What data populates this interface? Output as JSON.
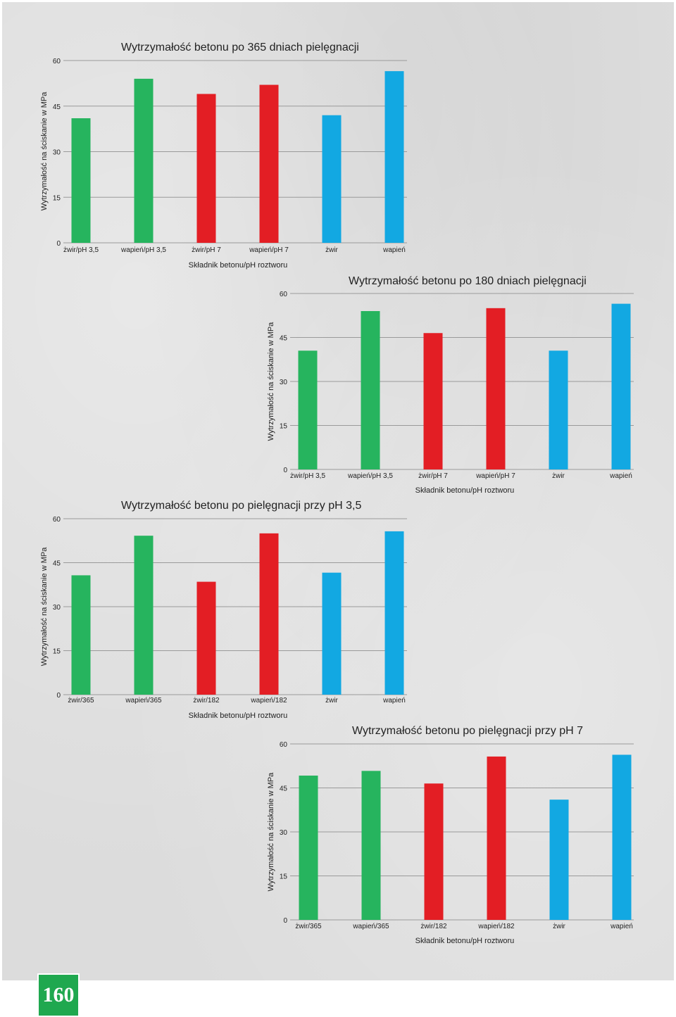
{
  "page_number": "160",
  "colors": {
    "green": "#26b45e",
    "red": "#e31e24",
    "blue": "#12a8e2",
    "gridline": "#9a9a9a"
  },
  "chart_data": [
    {
      "type": "bar",
      "title": "Wytrzymałość betonu po 365 dniach pielęgnacji",
      "xlabel": "Składnik betonu/pH roztworu",
      "ylabel": "Wytrzymałość na ściskanie w MPa",
      "ylim": [
        0,
        60
      ],
      "yticks": [
        "0",
        "15",
        "30",
        "45",
        "60"
      ],
      "categories": [
        "żwir/pH 3,5",
        "wapień/pH 3,5",
        "żwir/pH 7",
        "wapień/pH 7",
        "żwir",
        "wapień"
      ],
      "values": [
        41,
        54,
        49,
        52,
        42,
        56.5
      ],
      "bar_colors": [
        "green",
        "green",
        "red",
        "red",
        "blue",
        "blue"
      ]
    },
    {
      "type": "bar",
      "title": "Wytrzymałość betonu po 180 dniach pielęgnacji",
      "xlabel": "Składnik betonu/pH roztworu",
      "ylabel": "Wytrzymałość na ściskanie w MPa",
      "ylim": [
        0,
        60
      ],
      "yticks": [
        "0",
        "15",
        "30",
        "45",
        "60"
      ],
      "categories": [
        "żwir/pH 3,5",
        "wapień/pH 3,5",
        "żwir/pH 7",
        "wapień/pH 7",
        "żwir",
        "wapień"
      ],
      "values": [
        40.5,
        54,
        46.5,
        55,
        40.5,
        56.5
      ],
      "bar_colors": [
        "green",
        "green",
        "red",
        "red",
        "blue",
        "blue"
      ]
    },
    {
      "type": "bar",
      "title": "Wytrzymałość betonu po pielęgnacji przy pH 3,5",
      "xlabel": "Składnik betonu/pH roztworu",
      "ylabel": "Wytrzymałość na ściskanie w MPa",
      "ylim": [
        0,
        60
      ],
      "yticks": [
        "0",
        "15",
        "30",
        "45",
        "60"
      ],
      "categories": [
        "żwir/365",
        "wapień/365",
        "żwir/182",
        "wapień/182",
        "żwir",
        "wapień"
      ],
      "values": [
        40.7,
        54.2,
        38.5,
        55,
        41.6,
        55.7
      ],
      "bar_colors": [
        "green",
        "green",
        "red",
        "red",
        "blue",
        "blue"
      ]
    },
    {
      "type": "bar",
      "title": "Wytrzymałość betonu po pielęgnacji przy pH 7",
      "xlabel": "Składnik betonu/pH roztworu",
      "ylabel": "Wytrzymałość na ściskanie w MPa",
      "ylim": [
        0,
        60
      ],
      "yticks": [
        "0",
        "15",
        "30",
        "45",
        "60"
      ],
      "categories": [
        "żwir/365",
        "wapień/365",
        "żwir/182",
        "wapień/182",
        "żwir",
        "wapień"
      ],
      "values": [
        49.2,
        50.8,
        46.5,
        55.7,
        41,
        56.3
      ],
      "bar_colors": [
        "green",
        "green",
        "red",
        "red",
        "blue",
        "blue"
      ]
    }
  ]
}
